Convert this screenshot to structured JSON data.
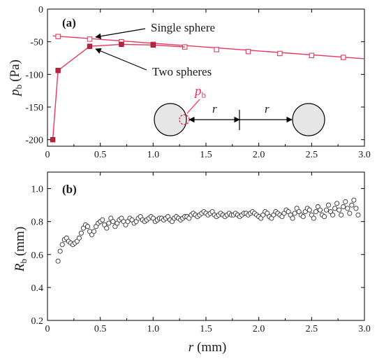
{
  "chart_data": [
    {
      "panel_label": "(a)",
      "type": "line",
      "ylabel": {
        "symbol": "p",
        "subscript": "b",
        "unit": "(Pa)"
      },
      "xlim": [
        0,
        3.0
      ],
      "ylim": [
        -210,
        0
      ],
      "xticks": [
        "0",
        "0.5",
        "1.0",
        "1.5",
        "2.0",
        "2.5",
        "3.0"
      ],
      "xtick_values": [
        0,
        0.5,
        1.0,
        1.5,
        2.0,
        2.5,
        3.0
      ],
      "yticks": [
        "0",
        "-50",
        "-100",
        "-150",
        "-200"
      ],
      "ytick_values": [
        0,
        -50,
        -100,
        -150,
        -200
      ],
      "series": [
        {
          "name": "Single sphere",
          "marker": "open-square",
          "color": "#e8375b",
          "x": [
            0.1,
            0.4,
            0.7,
            1.0,
            1.3,
            1.6,
            1.9,
            2.2,
            2.5,
            2.8
          ],
          "y": [
            -42,
            -46,
            -50,
            -54,
            -58,
            -62,
            -65,
            -68,
            -71,
            -74
          ],
          "line_x": [
            0.05,
            3.0
          ],
          "line_y": [
            -41,
            -76
          ]
        },
        {
          "name": "Two spheres",
          "marker": "filled-square",
          "color": "#e8375b",
          "x": [
            0.05,
            0.1,
            0.4,
            0.7,
            1.0
          ],
          "y": [
            -200,
            -94,
            -57,
            -54,
            -55
          ]
        }
      ],
      "inset": {
        "pressure_label": {
          "symbol": "p",
          "subscript": "b",
          "color": "#ff2a55"
        },
        "distance_label": "r"
      }
    },
    {
      "panel_label": "(b)",
      "type": "scatter",
      "ylabel": {
        "symbol": "R",
        "subscript": "b",
        "unit": "(mm)"
      },
      "xlabel": {
        "symbol": "r",
        "unit": "(mm)"
      },
      "xlim": [
        0,
        3.0
      ],
      "ylim": [
        0.2,
        1.1
      ],
      "xticks": [
        "0",
        "0.5",
        "1.0",
        "1.5",
        "2.0",
        "2.5",
        "3.0"
      ],
      "xtick_values": [
        0,
        0.5,
        1.0,
        1.5,
        2.0,
        2.5,
        3.0
      ],
      "yticks": [
        "0.2",
        "0.4",
        "0.6",
        "0.8",
        "1.0"
      ],
      "ytick_values": [
        0.2,
        0.4,
        0.6,
        0.8,
        1.0
      ],
      "marker": "open-circle",
      "x": [
        0.1,
        0.12,
        0.14,
        0.16,
        0.18,
        0.2,
        0.22,
        0.24,
        0.26,
        0.28,
        0.3,
        0.32,
        0.34,
        0.36,
        0.38,
        0.4,
        0.42,
        0.44,
        0.46,
        0.48,
        0.5,
        0.52,
        0.54,
        0.56,
        0.58,
        0.6,
        0.62,
        0.64,
        0.66,
        0.68,
        0.7,
        0.72,
        0.74,
        0.76,
        0.78,
        0.8,
        0.82,
        0.84,
        0.86,
        0.88,
        0.9,
        0.92,
        0.94,
        0.96,
        0.98,
        1.0,
        1.02,
        1.04,
        1.06,
        1.08,
        1.1,
        1.12,
        1.14,
        1.16,
        1.18,
        1.2,
        1.22,
        1.24,
        1.26,
        1.28,
        1.3,
        1.32,
        1.34,
        1.36,
        1.38,
        1.4,
        1.42,
        1.44,
        1.46,
        1.48,
        1.5,
        1.52,
        1.54,
        1.56,
        1.58,
        1.6,
        1.62,
        1.64,
        1.66,
        1.68,
        1.7,
        1.72,
        1.74,
        1.76,
        1.78,
        1.8,
        1.82,
        1.84,
        1.86,
        1.88,
        1.9,
        1.92,
        1.94,
        1.96,
        1.98,
        2.0,
        2.02,
        2.04,
        2.06,
        2.08,
        2.1,
        2.12,
        2.14,
        2.16,
        2.18,
        2.2,
        2.22,
        2.24,
        2.26,
        2.28,
        2.3,
        2.32,
        2.34,
        2.36,
        2.38,
        2.4,
        2.42,
        2.44,
        2.46,
        2.48,
        2.5,
        2.52,
        2.54,
        2.56,
        2.58,
        2.6,
        2.62,
        2.64,
        2.66,
        2.68,
        2.7,
        2.72,
        2.74,
        2.76,
        2.78,
        2.8,
        2.82,
        2.84,
        2.86,
        2.88,
        2.9,
        2.92,
        2.94
      ],
      "y": [
        0.56,
        0.62,
        0.66,
        0.69,
        0.7,
        0.68,
        0.67,
        0.66,
        0.67,
        0.68,
        0.7,
        0.73,
        0.76,
        0.78,
        0.77,
        0.74,
        0.72,
        0.74,
        0.77,
        0.79,
        0.8,
        0.81,
        0.78,
        0.76,
        0.79,
        0.82,
        0.8,
        0.77,
        0.79,
        0.81,
        0.82,
        0.8,
        0.78,
        0.8,
        0.82,
        0.81,
        0.79,
        0.8,
        0.82,
        0.83,
        0.81,
        0.8,
        0.81,
        0.82,
        0.83,
        0.82,
        0.8,
        0.81,
        0.82,
        0.82,
        0.81,
        0.82,
        0.83,
        0.81,
        0.8,
        0.82,
        0.83,
        0.82,
        0.81,
        0.82,
        0.83,
        0.83,
        0.82,
        0.84,
        0.85,
        0.84,
        0.83,
        0.84,
        0.85,
        0.86,
        0.85,
        0.84,
        0.85,
        0.86,
        0.84,
        0.83,
        0.84,
        0.85,
        0.84,
        0.83,
        0.84,
        0.85,
        0.84,
        0.84,
        0.85,
        0.84,
        0.83,
        0.84,
        0.85,
        0.85,
        0.84,
        0.85,
        0.86,
        0.85,
        0.84,
        0.83,
        0.82,
        0.84,
        0.86,
        0.85,
        0.83,
        0.82,
        0.84,
        0.86,
        0.85,
        0.84,
        0.83,
        0.85,
        0.87,
        0.86,
        0.84,
        0.82,
        0.85,
        0.88,
        0.86,
        0.84,
        0.83,
        0.86,
        0.88,
        0.87,
        0.84,
        0.82,
        0.86,
        0.89,
        0.87,
        0.84,
        0.83,
        0.87,
        0.9,
        0.86,
        0.84,
        0.88,
        0.91,
        0.87,
        0.84,
        0.89,
        0.92,
        0.88,
        0.85,
        0.9,
        0.93,
        0.88,
        0.84
      ]
    }
  ],
  "colors": {
    "series": "#e8375b",
    "inset_label": "#ff2a55",
    "sphere_fill": "#e6e6e6",
    "axis": "#000000"
  }
}
